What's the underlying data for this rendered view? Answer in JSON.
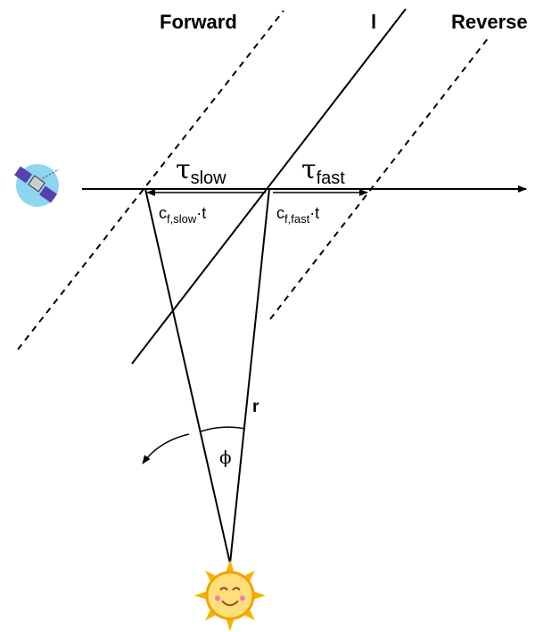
{
  "labels": {
    "forward": "Forward",
    "line_l": "l",
    "reverse": "Reverse",
    "tau_slow": {
      "symbol": "τ",
      "sub": "slow"
    },
    "tau_fast": {
      "symbol": "τ",
      "sub": "fast"
    },
    "c_slow": {
      "symbol": "c",
      "sub": "f,slow",
      "suffix": "·t"
    },
    "c_fast": {
      "symbol": "c",
      "sub": "f,fast",
      "suffix": "·t"
    },
    "r": "r",
    "phi": "ϕ"
  }
}
